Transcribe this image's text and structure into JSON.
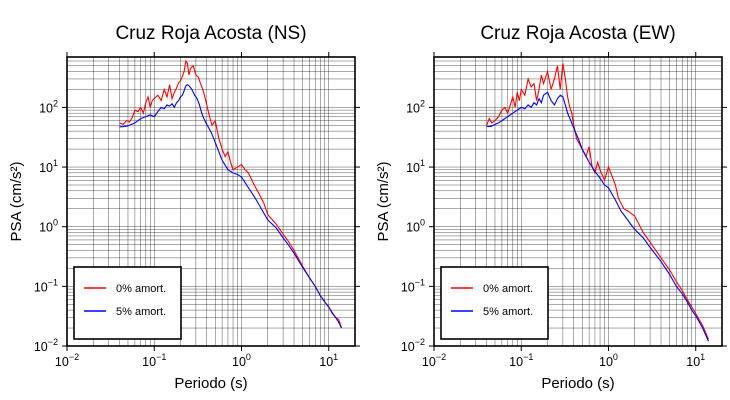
{
  "chart_data": [
    {
      "type": "line",
      "title": "Cruz Roja Acosta (NS)",
      "xlabel": "Periodo (s)",
      "ylabel": "PSA (cm/s²)",
      "x_scale": "log",
      "y_scale": "log",
      "xlim": [
        0.01,
        20
      ],
      "ylim": [
        0.01,
        700
      ],
      "grid": true,
      "legend_position": "bottom-left",
      "x_ticks": [
        {
          "value": 0.01,
          "base": "10",
          "exp": "−2"
        },
        {
          "value": 0.1,
          "base": "10",
          "exp": "−1"
        },
        {
          "value": 1,
          "base": "10",
          "exp": "0"
        },
        {
          "value": 10,
          "base": "10",
          "exp": "1"
        }
      ],
      "y_ticks": [
        {
          "value": 0.01,
          "base": "10",
          "exp": "−2"
        },
        {
          "value": 0.1,
          "base": "10",
          "exp": "−1"
        },
        {
          "value": 1,
          "base": "10",
          "exp": "0"
        },
        {
          "value": 10,
          "base": "10",
          "exp": "1"
        },
        {
          "value": 100,
          "base": "10",
          "exp": "2"
        }
      ],
      "series": [
        {
          "name": "0% amort.",
          "color": "#ff0000",
          "x": [
            0.04,
            0.044,
            0.048,
            0.052,
            0.056,
            0.06,
            0.065,
            0.07,
            0.075,
            0.08,
            0.085,
            0.09,
            0.095,
            0.1,
            0.11,
            0.12,
            0.13,
            0.14,
            0.15,
            0.16,
            0.17,
            0.18,
            0.19,
            0.2,
            0.21,
            0.22,
            0.23,
            0.24,
            0.25,
            0.26,
            0.28,
            0.3,
            0.32,
            0.34,
            0.36,
            0.38,
            0.4,
            0.43,
            0.46,
            0.5,
            0.55,
            0.6,
            0.65,
            0.7,
            0.75,
            0.8,
            0.9,
            1.0,
            1.1,
            1.2,
            1.4,
            1.6,
            1.8,
            2.0,
            2.5,
            3.0,
            3.5,
            4.0,
            5.0,
            6.0,
            7.0,
            8.0,
            9.0,
            10.0,
            11.0,
            12.0,
            13.0,
            14.0
          ],
          "y": [
            55,
            52,
            60,
            57,
            68,
            90,
            85,
            100,
            80,
            120,
            150,
            100,
            130,
            140,
            160,
            130,
            200,
            150,
            240,
            140,
            180,
            210,
            260,
            280,
            330,
            400,
            600,
            550,
            350,
            450,
            500,
            350,
            320,
            250,
            200,
            150,
            110,
            70,
            50,
            60,
            30,
            20,
            15,
            18,
            12,
            9,
            10,
            11,
            9,
            8,
            5,
            3.5,
            2.5,
            1.6,
            1.1,
            0.75,
            0.55,
            0.4,
            0.22,
            0.14,
            0.1,
            0.07,
            0.055,
            0.045,
            0.035,
            0.03,
            0.028,
            0.02
          ]
        },
        {
          "name": "5% amort.",
          "color": "#0000ff",
          "x": [
            0.04,
            0.045,
            0.05,
            0.055,
            0.06,
            0.07,
            0.08,
            0.09,
            0.1,
            0.11,
            0.12,
            0.13,
            0.14,
            0.15,
            0.16,
            0.17,
            0.18,
            0.19,
            0.2,
            0.21,
            0.22,
            0.23,
            0.24,
            0.25,
            0.27,
            0.29,
            0.31,
            0.33,
            0.35,
            0.38,
            0.4,
            0.45,
            0.5,
            0.55,
            0.6,
            0.7,
            0.8,
            0.9,
            1.0,
            1.2,
            1.4,
            1.6,
            1.8,
            2.0,
            2.5,
            3.0,
            3.5,
            4.0,
            5.0,
            6.0,
            7.0,
            8.0,
            9.0,
            10.0,
            11.0,
            12.0,
            13.0,
            14.0
          ],
          "y": [
            47,
            48,
            49,
            52,
            55,
            65,
            70,
            75,
            70,
            85,
            100,
            95,
            110,
            105,
            115,
            100,
            120,
            130,
            150,
            160,
            190,
            230,
            240,
            230,
            200,
            160,
            140,
            110,
            80,
            60,
            52,
            38,
            26,
            18,
            13,
            9,
            8,
            7.5,
            6.8,
            4.5,
            3.2,
            2.3,
            1.7,
            1.3,
            0.95,
            0.65,
            0.48,
            0.36,
            0.21,
            0.14,
            0.1,
            0.07,
            0.055,
            0.045,
            0.036,
            0.03,
            0.025,
            0.02
          ]
        }
      ]
    },
    {
      "type": "line",
      "title": "Cruz Roja Acosta (EW)",
      "xlabel": "Periodo (s)",
      "ylabel": "PSA (cm/s²)",
      "x_scale": "log",
      "y_scale": "log",
      "xlim": [
        0.01,
        20
      ],
      "ylim": [
        0.01,
        700
      ],
      "grid": true,
      "legend_position": "bottom-left",
      "x_ticks": [
        {
          "value": 0.01,
          "base": "10",
          "exp": "−2"
        },
        {
          "value": 0.1,
          "base": "10",
          "exp": "−1"
        },
        {
          "value": 1,
          "base": "10",
          "exp": "0"
        },
        {
          "value": 10,
          "base": "10",
          "exp": "1"
        }
      ],
      "y_ticks": [
        {
          "value": 0.01,
          "base": "10",
          "exp": "−2"
        },
        {
          "value": 0.1,
          "base": "10",
          "exp": "−1"
        },
        {
          "value": 1,
          "base": "10",
          "exp": "0"
        },
        {
          "value": 10,
          "base": "10",
          "exp": "1"
        },
        {
          "value": 100,
          "base": "10",
          "exp": "2"
        }
      ],
      "series": [
        {
          "name": "0% amort.",
          "color": "#ff0000",
          "x": [
            0.04,
            0.043,
            0.046,
            0.05,
            0.055,
            0.06,
            0.065,
            0.07,
            0.075,
            0.08,
            0.085,
            0.09,
            0.095,
            0.1,
            0.11,
            0.12,
            0.13,
            0.14,
            0.15,
            0.16,
            0.17,
            0.18,
            0.2,
            0.22,
            0.24,
            0.26,
            0.28,
            0.3,
            0.32,
            0.34,
            0.36,
            0.38,
            0.4,
            0.43,
            0.46,
            0.5,
            0.55,
            0.6,
            0.65,
            0.7,
            0.75,
            0.8,
            0.9,
            1.0,
            1.1,
            1.2,
            1.3,
            1.5,
            1.7,
            2.0,
            2.5,
            3.0,
            4.0,
            5.0,
            6.0,
            7.0,
            8.0,
            9.0,
            10.0,
            12.0,
            14.0
          ],
          "y": [
            50,
            65,
            55,
            60,
            70,
            90,
            100,
            80,
            110,
            150,
            100,
            180,
            130,
            200,
            160,
            300,
            220,
            250,
            130,
            200,
            350,
            250,
            400,
            200,
            300,
            500,
            200,
            550,
            300,
            150,
            100,
            80,
            50,
            30,
            25,
            20,
            15,
            22,
            10,
            8,
            12,
            9,
            6,
            10,
            7,
            5,
            3,
            2,
            1.8,
            1.5,
            0.8,
            0.55,
            0.3,
            0.19,
            0.12,
            0.085,
            0.06,
            0.045,
            0.035,
            0.022,
            0.013
          ]
        },
        {
          "name": "5% amort.",
          "color": "#0000ff",
          "x": [
            0.04,
            0.045,
            0.05,
            0.055,
            0.06,
            0.07,
            0.08,
            0.09,
            0.1,
            0.11,
            0.12,
            0.13,
            0.14,
            0.15,
            0.16,
            0.17,
            0.18,
            0.2,
            0.22,
            0.24,
            0.26,
            0.28,
            0.3,
            0.32,
            0.34,
            0.37,
            0.4,
            0.45,
            0.5,
            0.6,
            0.7,
            0.8,
            0.9,
            1.0,
            1.1,
            1.2,
            1.4,
            1.6,
            1.8,
            2.0,
            2.5,
            3.0,
            4.0,
            5.0,
            6.0,
            7.0,
            8.0,
            9.0,
            10.0,
            12.0,
            14.0
          ],
          "y": [
            48,
            48,
            52,
            55,
            60,
            70,
            80,
            90,
            100,
            95,
            110,
            100,
            120,
            110,
            140,
            120,
            160,
            180,
            130,
            110,
            140,
            160,
            150,
            110,
            80,
            60,
            45,
            30,
            20,
            12,
            8.5,
            6.5,
            5,
            4.5,
            3.5,
            2.8,
            1.8,
            1.4,
            1.1,
            0.9,
            0.65,
            0.45,
            0.26,
            0.16,
            0.1,
            0.075,
            0.055,
            0.04,
            0.032,
            0.02,
            0.012
          ]
        }
      ]
    }
  ]
}
